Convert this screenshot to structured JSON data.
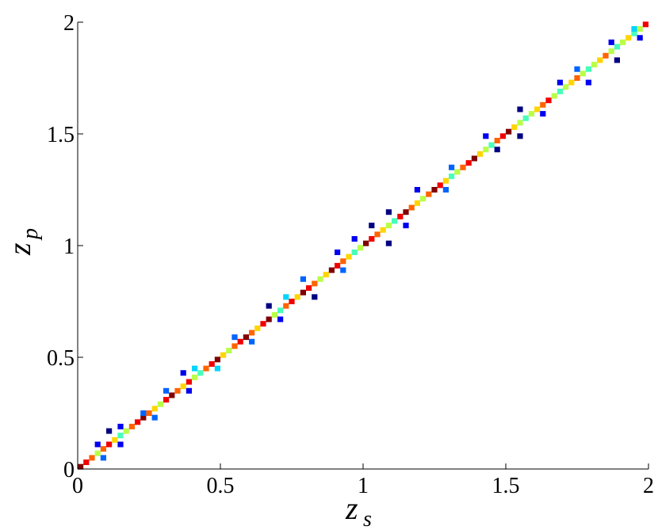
{
  "chart_data": {
    "type": "heatmap",
    "colormap": "jet",
    "xlabel": "z",
    "xlabel_sub": "s",
    "ylabel": "z",
    "ylabel_sub": "p",
    "xlim": [
      0,
      2
    ],
    "ylim": [
      0,
      2
    ],
    "xticks": [
      0,
      0.5,
      1,
      1.5,
      2
    ],
    "yticks": [
      0,
      0.5,
      1,
      1.5,
      2
    ],
    "x": [
      0.01,
      0.03,
      0.05,
      0.07,
      0.09,
      0.11,
      0.13,
      0.15,
      0.17,
      0.19,
      0.21,
      0.23,
      0.25,
      0.27,
      0.29,
      0.31,
      0.33,
      0.35,
      0.37,
      0.39,
      0.41,
      0.43,
      0.45,
      0.47,
      0.49,
      0.51,
      0.53,
      0.55,
      0.57,
      0.59,
      0.61,
      0.63,
      0.65,
      0.67,
      0.69,
      0.71,
      0.73,
      0.75,
      0.77,
      0.79,
      0.81,
      0.83,
      0.85,
      0.87,
      0.89,
      0.91,
      0.93,
      0.95,
      0.97,
      0.99,
      1.01,
      1.03,
      1.05,
      1.07,
      1.09,
      1.11,
      1.13,
      1.15,
      1.17,
      1.19,
      1.21,
      1.23,
      1.25,
      1.27,
      1.29,
      1.31,
      1.33,
      1.35,
      1.37,
      1.39,
      1.41,
      1.43,
      1.45,
      1.47,
      1.49,
      1.51,
      1.53,
      1.55,
      1.57,
      1.59,
      1.61,
      1.63,
      1.65,
      1.67,
      1.69,
      1.71,
      1.73,
      1.75,
      1.77,
      1.79,
      1.81,
      1.83,
      1.85,
      1.87,
      1.89,
      1.91,
      1.93,
      1.95,
      1.97,
      1.99,
      0.07,
      0.11,
      0.15,
      0.23,
      0.31,
      0.37,
      0.41,
      0.55,
      0.67,
      0.73,
      0.79,
      0.91,
      0.97,
      1.03,
      1.09,
      1.19,
      1.31,
      1.43,
      1.55,
      1.69,
      1.75,
      1.87,
      1.95,
      0.09,
      0.15,
      0.27,
      0.39,
      0.49,
      0.61,
      0.71,
      0.83,
      0.93,
      1.09,
      1.15,
      1.29,
      1.47,
      1.55,
      1.63,
      1.79,
      1.89,
      1.97
    ],
    "y": [
      0.01,
      0.03,
      0.05,
      0.07,
      0.09,
      0.11,
      0.13,
      0.15,
      0.17,
      0.19,
      0.21,
      0.23,
      0.25,
      0.27,
      0.29,
      0.31,
      0.33,
      0.35,
      0.37,
      0.39,
      0.41,
      0.43,
      0.45,
      0.47,
      0.49,
      0.51,
      0.53,
      0.55,
      0.57,
      0.59,
      0.61,
      0.63,
      0.65,
      0.67,
      0.69,
      0.71,
      0.73,
      0.75,
      0.77,
      0.79,
      0.81,
      0.83,
      0.85,
      0.87,
      0.89,
      0.91,
      0.93,
      0.95,
      0.97,
      0.99,
      1.01,
      1.03,
      1.05,
      1.07,
      1.09,
      1.11,
      1.13,
      1.15,
      1.17,
      1.19,
      1.21,
      1.23,
      1.25,
      1.27,
      1.29,
      1.31,
      1.33,
      1.35,
      1.37,
      1.39,
      1.41,
      1.43,
      1.45,
      1.47,
      1.49,
      1.51,
      1.53,
      1.55,
      1.57,
      1.59,
      1.61,
      1.63,
      1.65,
      1.67,
      1.69,
      1.71,
      1.73,
      1.75,
      1.77,
      1.79,
      1.81,
      1.83,
      1.85,
      1.87,
      1.89,
      1.91,
      1.93,
      1.95,
      1.97,
      1.99,
      0.11,
      0.17,
      0.19,
      0.25,
      0.35,
      0.43,
      0.45,
      0.59,
      0.73,
      0.77,
      0.85,
      0.97,
      1.03,
      1.09,
      1.15,
      1.25,
      1.35,
      1.49,
      1.61,
      1.73,
      1.79,
      1.91,
      1.97,
      0.05,
      0.11,
      0.23,
      0.35,
      0.45,
      0.57,
      0.67,
      0.77,
      0.89,
      1.01,
      1.09,
      1.25,
      1.43,
      1.49,
      1.59,
      1.73,
      1.83,
      1.93
    ],
    "values": [
      10,
      9,
      8,
      6,
      8,
      9,
      7,
      5,
      6,
      8,
      9,
      10,
      8,
      7,
      6,
      9,
      10,
      8,
      7,
      9,
      6,
      5,
      8,
      9,
      10,
      7,
      6,
      8,
      9,
      10,
      8,
      7,
      9,
      10,
      6,
      5,
      8,
      9,
      7,
      10,
      9,
      8,
      6,
      7,
      10,
      9,
      8,
      7,
      5,
      6,
      10,
      9,
      8,
      7,
      6,
      5,
      9,
      10,
      8,
      7,
      6,
      8,
      10,
      9,
      7,
      5,
      6,
      8,
      9,
      10,
      7,
      6,
      5,
      8,
      9,
      10,
      7,
      6,
      5,
      6,
      7,
      8,
      9,
      6,
      5,
      6,
      7,
      8,
      6,
      5,
      6,
      7,
      8,
      6,
      5,
      6,
      7,
      5,
      6,
      9,
      2,
      1,
      2,
      3,
      3,
      2,
      4,
      3,
      1,
      4,
      3,
      2,
      2,
      1,
      1,
      2,
      3,
      2,
      1,
      2,
      3,
      2,
      4,
      3,
      2,
      3,
      2,
      4,
      3,
      2,
      1,
      3,
      1,
      2,
      3,
      1,
      1,
      2,
      2,
      1,
      2
    ]
  }
}
